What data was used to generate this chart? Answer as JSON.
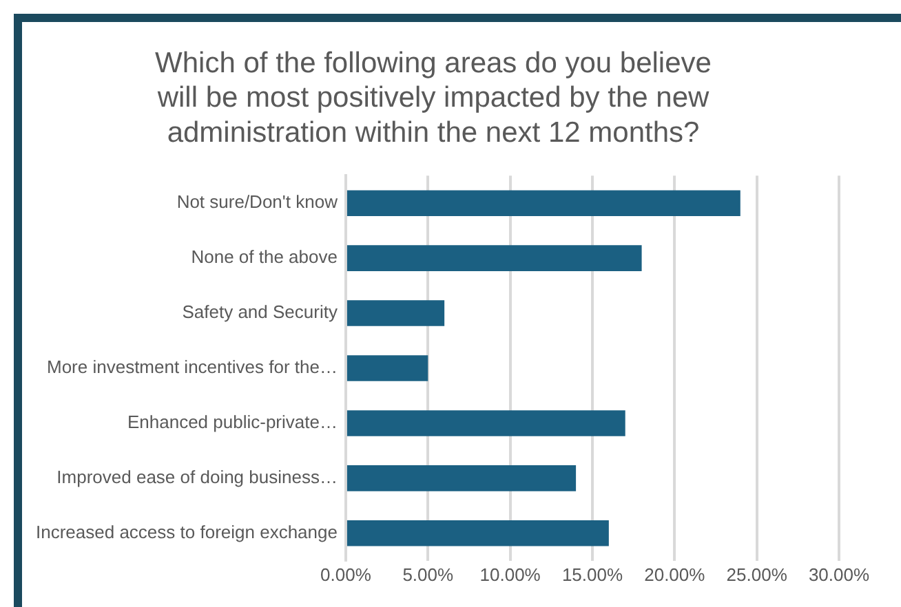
{
  "chart_data": {
    "type": "bar",
    "orientation": "horizontal",
    "title": "Which of the following areas do you believe\nwill be most positively impacted by the new\nadministration within the next 12 months?",
    "categories": [
      "Not sure/Don't know",
      "None of the above",
      "Safety and Security",
      "More investment incentives for the…",
      "Enhanced public-private…",
      "Improved ease of doing business…",
      "Increased access to foreign exchange"
    ],
    "values": [
      24,
      18,
      6,
      5,
      17,
      14,
      16
    ],
    "color": "#1b6082",
    "xlim": [
      0,
      30
    ],
    "xticks": [
      {
        "value": 0,
        "label": "0.00%"
      },
      {
        "value": 5,
        "label": "5.00%"
      },
      {
        "value": 10,
        "label": "10.00%"
      },
      {
        "value": 15,
        "label": "15.00%"
      },
      {
        "value": 20,
        "label": "20.00%"
      },
      {
        "value": 25,
        "label": "25.00%"
      },
      {
        "value": 30,
        "label": "30.00%"
      }
    ],
    "grid": "x",
    "legend": false
  }
}
